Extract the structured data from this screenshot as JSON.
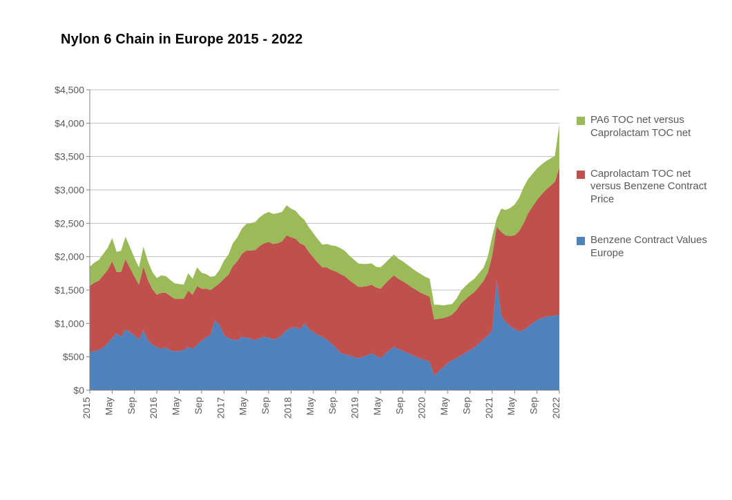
{
  "title": "Nylon 6 Chain in Europe 2015 - 2022",
  "chart": {
    "type": "area-stacked",
    "background_color": "#ffffff",
    "grid_color": "#bfbfbf",
    "axis_color": "#808080",
    "label_color": "#595959",
    "title_fontsize": 20,
    "label_fontsize": 14,
    "ylim": [
      0,
      4500
    ],
    "ytick_step": 500,
    "y_currency_prefix": "$",
    "y_thousands_sep": ",",
    "x_labels": [
      "2015",
      "May",
      "Sep",
      "2016",
      "May",
      "Sep",
      "2017",
      "May",
      "Sep",
      "2018",
      "May",
      "Sep",
      "2019",
      "May",
      "Sep",
      "2020",
      "May",
      "Sep",
      "2021",
      "May",
      "Sep",
      "2022"
    ],
    "x_label_rotation_deg": 90,
    "series": [
      {
        "name": "Benzene Contract Values Europe",
        "color": "#4f81bd",
        "values": [
          560,
          590,
          600,
          640,
          700,
          780,
          850,
          800,
          910,
          870,
          820,
          760,
          900,
          750,
          680,
          650,
          620,
          640,
          600,
          580,
          590,
          600,
          650,
          620,
          680,
          740,
          790,
          830,
          1050,
          980,
          830,
          780,
          760,
          750,
          800,
          790,
          770,
          750,
          780,
          800,
          790,
          760,
          780,
          830,
          900,
          930,
          950,
          910,
          1000,
          920,
          870,
          830,
          800,
          760,
          700,
          640,
          560,
          540,
          520,
          500,
          480,
          500,
          520,
          550,
          520,
          480,
          540,
          600,
          650,
          620,
          590,
          560,
          530,
          500,
          470,
          450,
          430,
          220,
          280,
          340,
          400,
          450,
          480,
          520,
          560,
          600,
          640,
          700,
          760,
          820,
          900,
          1650,
          1120,
          1020,
          960,
          920,
          880,
          900,
          950,
          1000,
          1050,
          1080,
          1100,
          1110,
          1120,
          1130
        ]
      },
      {
        "name": "Caprolactam TOC net versus Benzene Contract Price",
        "color": "#c0504d",
        "values": [
          1000,
          1020,
          1040,
          1080,
          1100,
          1150,
          920,
          970,
          1050,
          960,
          880,
          820,
          950,
          900,
          830,
          780,
          840,
          820,
          810,
          790,
          780,
          770,
          840,
          810,
          880,
          780,
          730,
          670,
          500,
          620,
          840,
          950,
          1100,
          1180,
          1240,
          1300,
          1320,
          1350,
          1380,
          1400,
          1430,
          1430,
          1420,
          1400,
          1420,
          1360,
          1320,
          1290,
          1170,
          1150,
          1120,
          1080,
          1040,
          1080,
          1100,
          1140,
          1180,
          1170,
          1130,
          1100,
          1070,
          1050,
          1040,
          1030,
          1020,
          1040,
          1050,
          1060,
          1070,
          1050,
          1040,
          1030,
          1010,
          1000,
          990,
          980,
          970,
          840,
          790,
          740,
          700,
          680,
          720,
          780,
          800,
          820,
          830,
          850,
          870,
          940,
          1120,
          800,
          1250,
          1300,
          1350,
          1400,
          1500,
          1600,
          1700,
          1750,
          1800,
          1850,
          1900,
          1950,
          2000,
          2200
        ]
      },
      {
        "name": "PA6 TOC net versus Caprolactam TOC net",
        "color": "#9bbb59",
        "values": [
          290,
          300,
          310,
          320,
          330,
          350,
          300,
          320,
          340,
          310,
          280,
          260,
          300,
          280,
          260,
          250,
          260,
          250,
          240,
          230,
          220,
          210,
          260,
          240,
          280,
          240,
          220,
          200,
          160,
          200,
          270,
          300,
          340,
          360,
          380,
          400,
          410,
          420,
          430,
          440,
          450,
          450,
          450,
          440,
          450,
          430,
          420,
          410,
          380,
          370,
          360,
          350,
          340,
          350,
          370,
          380,
          390,
          380,
          370,
          360,
          350,
          340,
          330,
          320,
          310,
          320,
          310,
          310,
          310,
          300,
          300,
          290,
          290,
          280,
          280,
          270,
          270,
          220,
          210,
          190,
          180,
          160,
          170,
          190,
          200,
          200,
          200,
          200,
          200,
          240,
          290,
          120,
          350,
          380,
          420,
          460,
          500,
          540,
          510,
          490,
          470,
          450,
          430,
          410,
          390,
          650
        ]
      }
    ],
    "legend": {
      "position": "right",
      "items": [
        {
          "label": "PA6 TOC net versus Caprolactam TOC net",
          "color": "#9bbb59"
        },
        {
          "label": "Caprolactam TOC net versus Benzene Contract Price",
          "color": "#c0504d"
        },
        {
          "label": "Benzene Contract Values Europe",
          "color": "#4f81bd"
        }
      ]
    }
  }
}
